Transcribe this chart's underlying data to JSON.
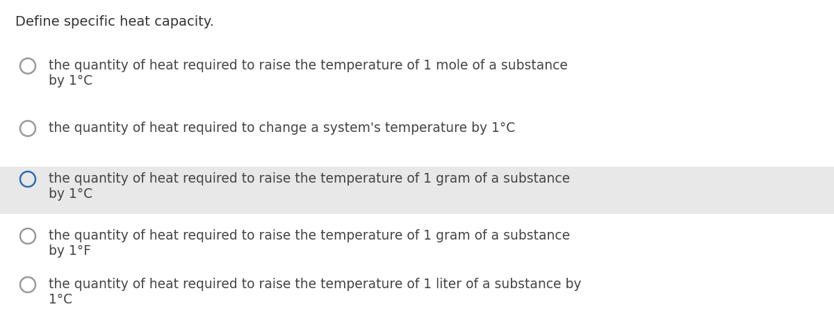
{
  "title": "Define specific heat capacity.",
  "background_color": "#ffffff",
  "title_fontsize": 14,
  "title_color": "#333333",
  "text_fontsize": 13.5,
  "text_color": "#444444",
  "highlight_color": "#e8e8e8",
  "circle_color_normal": "#999999",
  "circle_color_selected": "#2b6cb0",
  "fig_width": 12.0,
  "fig_height": 4.68,
  "dpi": 100,
  "options": [
    {
      "lines": [
        "the quantity of heat required to raise the temperature of 1 mole of a substance",
        "by 1°C"
      ],
      "selected": false,
      "highlight": false
    },
    {
      "lines": [
        "the quantity of heat required to change a system's temperature by 1°C"
      ],
      "selected": false,
      "highlight": false
    },
    {
      "lines": [
        "the quantity of heat required to raise the temperature of 1 gram of a substance",
        "by 1°C"
      ],
      "selected": true,
      "highlight": true
    },
    {
      "lines": [
        "the quantity of heat required to raise the temperature of 1 gram of a substance",
        "by 1°F"
      ],
      "selected": false,
      "highlight": false
    },
    {
      "lines": [
        "the quantity of heat required to raise the temperature of 1 liter of a substance by",
        "1°C"
      ],
      "selected": false,
      "highlight": false
    }
  ]
}
